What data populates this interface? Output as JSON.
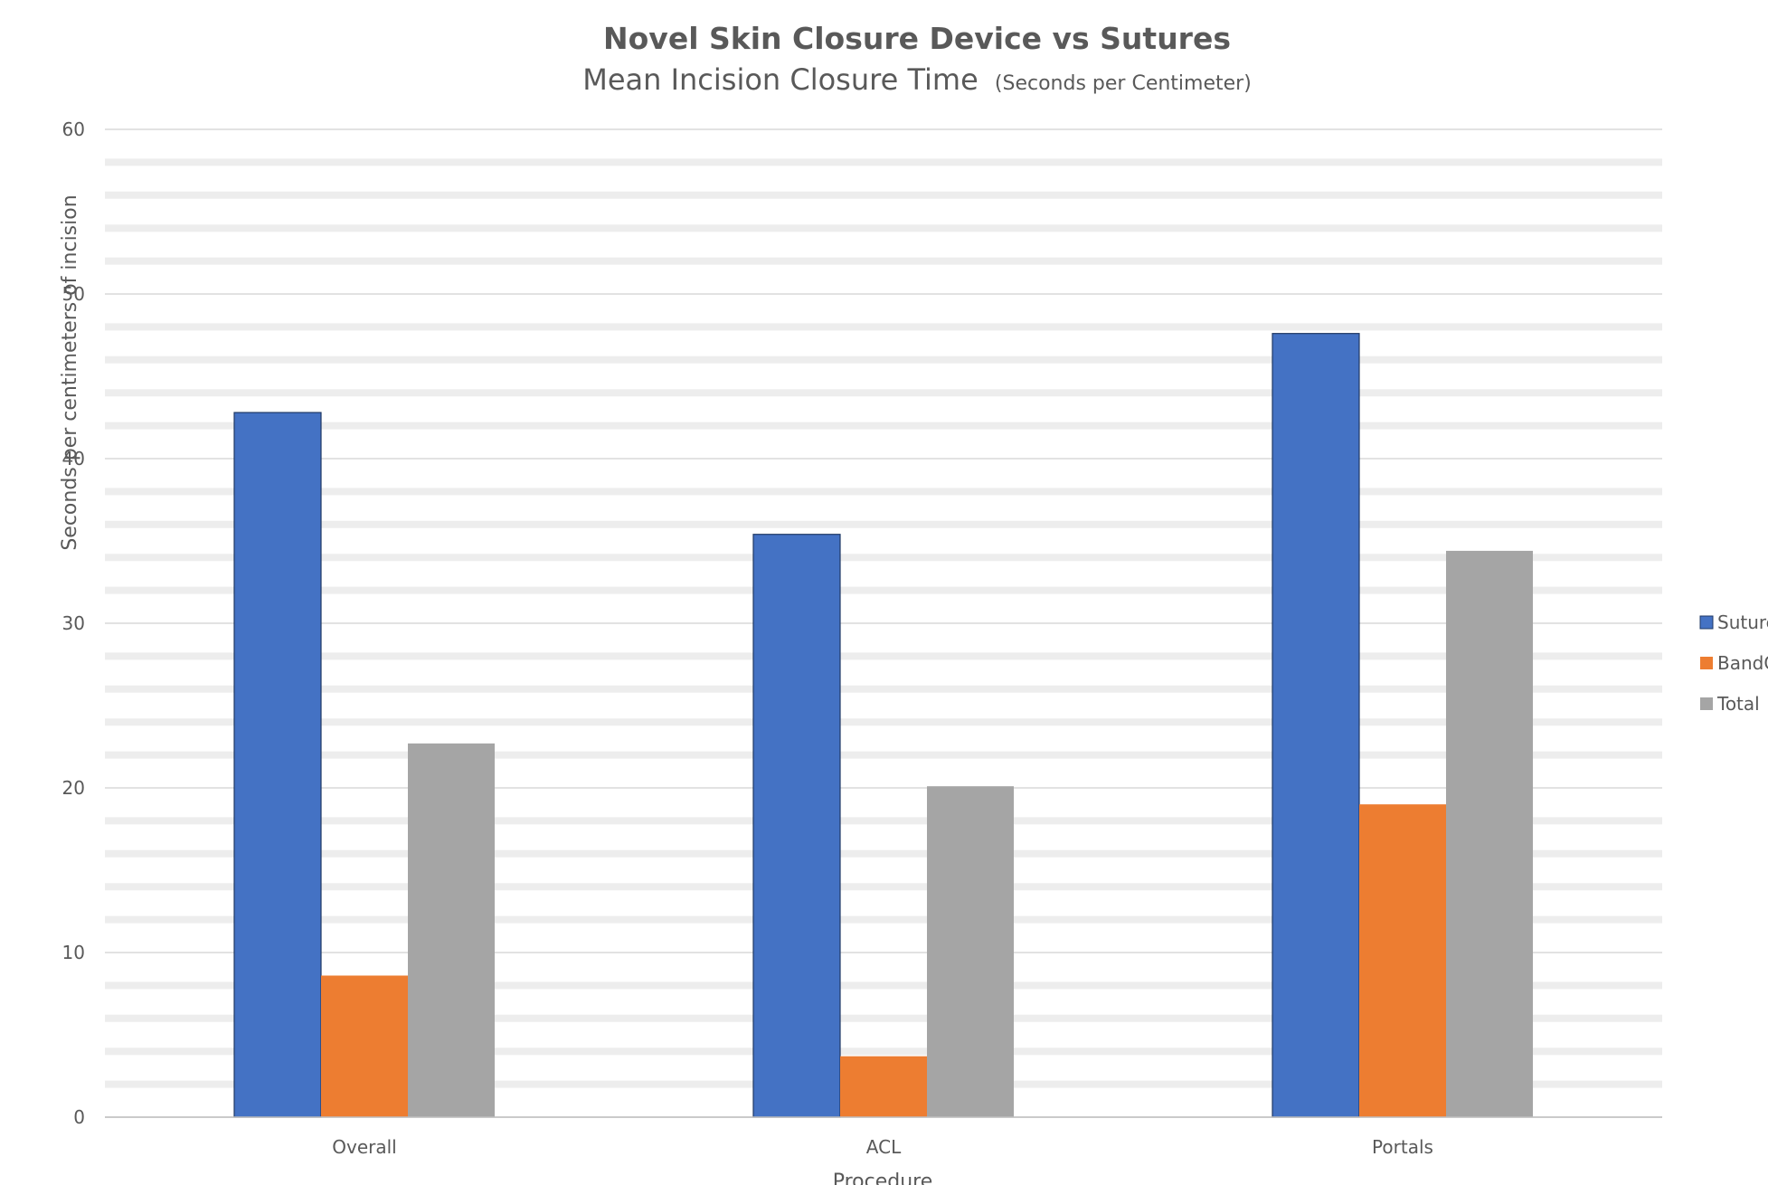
{
  "chart_data": {
    "type": "bar",
    "title": "Novel Skin Closure Device vs Sutures",
    "subtitle_main": "Mean Incision Closure Time",
    "subtitle_units": "(Seconds per Centimeter)",
    "xlabel": "Procedure",
    "ylabel": "Seconds per centimeters of incision",
    "categories": [
      "Overall",
      "ACL",
      "Portals"
    ],
    "series": [
      {
        "name": "Sutures",
        "color": "#4472C4",
        "values": [
          42.8,
          35.4,
          47.6
        ]
      },
      {
        "name": "BandGrip",
        "color": "#ED7D31",
        "values": [
          8.6,
          3.7,
          19.0
        ]
      },
      {
        "name": "Total",
        "color": "#A5A5A5",
        "values": [
          22.7,
          20.1,
          34.4
        ]
      }
    ],
    "ylim": [
      0,
      60
    ],
    "yticks": [
      "0",
      "10",
      "20",
      "30",
      "40",
      "50",
      "60"
    ],
    "grid": true,
    "legend_position": "right"
  }
}
